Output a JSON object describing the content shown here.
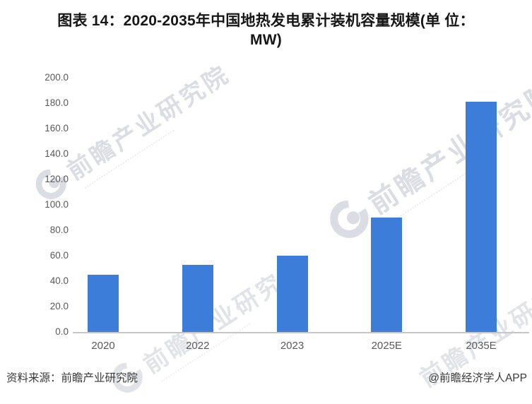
{
  "title": {
    "line1": "图表 14：2020-2035年中国地热发电累计装机容量规模(单 位：",
    "line2": "MW)"
  },
  "chart_data": {
    "type": "bar",
    "title": "图表 14：2020-2035年中国地热发电累计装机容量规模(单 位：MW)",
    "categories": [
      "2020",
      "2022",
      "2023",
      "2025E",
      "2035E"
    ],
    "values": [
      45,
      53,
      60,
      90,
      181
    ],
    "unit": "MW",
    "xlabel": "",
    "ylabel": "",
    "ylim": [
      0,
      200
    ],
    "ytick_step": 20,
    "ytick_labels": [
      "200.0",
      "180.0",
      "160.0",
      "140.0",
      "120.0",
      "100.0",
      "80.0",
      "60.0",
      "40.0",
      "20.0",
      "0.0"
    ],
    "bar_color": "#3b7dd8",
    "grid": false,
    "legend": false
  },
  "watermark": {
    "text": "前瞻产业研究院",
    "color": "#bcc2cd"
  },
  "footer": {
    "source": "资料来源：前瞻产业研究院",
    "credit": "@前瞻经济学人APP"
  }
}
